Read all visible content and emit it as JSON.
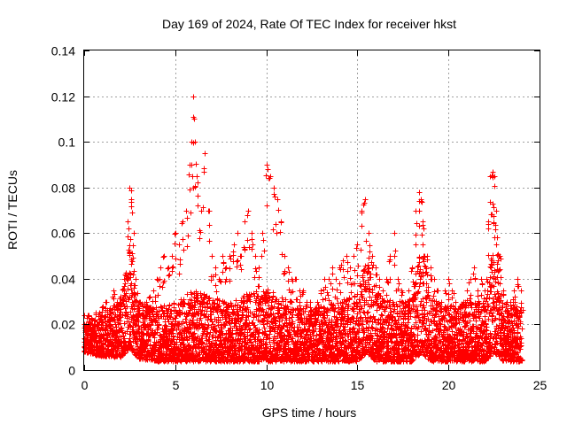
{
  "chart_data": {
    "type": "scatter",
    "title": "Day 169 of 2024, Rate Of TEC Index for receiver hkst",
    "xlabel": "GPS time / hours",
    "ylabel": "ROTI / TECUs",
    "xlim": [
      0,
      25
    ],
    "ylim": [
      0,
      0.14
    ],
    "xticks": [
      0,
      5,
      10,
      15,
      20,
      25
    ],
    "xtick_labels": [
      "0",
      "5",
      "10",
      "15",
      "20",
      "25"
    ],
    "yticks": [
      0,
      0.02,
      0.04,
      0.06,
      0.08,
      0.1,
      0.12,
      0.14
    ],
    "ytick_labels": [
      "0",
      "0.02",
      "0.04",
      "0.06",
      "0.08",
      "0.1",
      "0.12",
      "0.14"
    ],
    "grid": true,
    "marker": "+",
    "color": "#ff0000",
    "series": [
      {
        "name": "ROTI",
        "x": [
          0.0,
          0.2,
          0.4,
          0.6,
          0.8,
          1.0,
          1.2,
          1.4,
          1.6,
          1.8,
          2.0,
          2.2,
          2.4,
          2.5,
          2.6,
          2.7,
          2.8,
          3.0,
          3.2,
          3.4,
          3.6,
          3.8,
          4.0,
          4.2,
          4.4,
          4.6,
          4.8,
          5.0,
          5.2,
          5.4,
          5.6,
          5.8,
          5.9,
          6.0,
          6.1,
          6.2,
          6.4,
          6.6,
          6.8,
          7.0,
          7.2,
          7.4,
          7.6,
          7.8,
          8.0,
          8.2,
          8.4,
          8.6,
          8.8,
          9.0,
          9.2,
          9.4,
          9.6,
          9.8,
          10.0,
          10.2,
          10.4,
          10.6,
          10.8,
          11.0,
          11.2,
          11.4,
          11.6,
          11.8,
          12.0,
          12.2,
          12.4,
          12.6,
          12.8,
          13.0,
          13.2,
          13.4,
          13.6,
          13.8,
          14.0,
          14.2,
          14.4,
          14.6,
          14.8,
          15.0,
          15.2,
          15.4,
          15.6,
          15.8,
          16.0,
          16.2,
          16.4,
          16.6,
          16.8,
          17.0,
          17.2,
          17.4,
          17.6,
          17.8,
          18.0,
          18.2,
          18.4,
          18.5,
          18.6,
          18.8,
          19.0,
          19.2,
          19.4,
          19.6,
          19.8,
          20.0,
          20.2,
          20.4,
          20.6,
          20.8,
          21.0,
          21.2,
          21.4,
          21.6,
          21.8,
          22.0,
          22.2,
          22.3,
          22.4,
          22.5,
          22.6,
          22.8,
          23.0,
          23.2,
          23.4,
          23.6,
          23.8,
          24.0
        ],
        "y": [
          0.024,
          0.02,
          0.018,
          0.022,
          0.02,
          0.028,
          0.03,
          0.025,
          0.035,
          0.03,
          0.032,
          0.04,
          0.065,
          0.08,
          0.075,
          0.06,
          0.04,
          0.03,
          0.028,
          0.03,
          0.032,
          0.035,
          0.04,
          0.045,
          0.05,
          0.045,
          0.05,
          0.06,
          0.055,
          0.065,
          0.07,
          0.09,
          0.1,
          0.12,
          0.1,
          0.085,
          0.07,
          0.095,
          0.07,
          0.05,
          0.045,
          0.04,
          0.05,
          0.045,
          0.05,
          0.055,
          0.06,
          0.05,
          0.065,
          0.07,
          0.06,
          0.05,
          0.045,
          0.06,
          0.09,
          0.085,
          0.08,
          0.075,
          0.065,
          0.05,
          0.045,
          0.04,
          0.04,
          0.035,
          0.035,
          0.03,
          0.03,
          0.025,
          0.03,
          0.035,
          0.04,
          0.04,
          0.045,
          0.04,
          0.045,
          0.048,
          0.05,
          0.045,
          0.05,
          0.055,
          0.07,
          0.075,
          0.06,
          0.05,
          0.045,
          0.04,
          0.035,
          0.04,
          0.05,
          0.06,
          0.04,
          0.035,
          0.03,
          0.035,
          0.045,
          0.07,
          0.078,
          0.075,
          0.065,
          0.05,
          0.045,
          0.04,
          0.035,
          0.03,
          0.035,
          0.04,
          0.035,
          0.03,
          0.028,
          0.03,
          0.035,
          0.04,
          0.045,
          0.035,
          0.04,
          0.035,
          0.065,
          0.085,
          0.087,
          0.085,
          0.07,
          0.05,
          0.035,
          0.03,
          0.03,
          0.035,
          0.04,
          0.035
        ]
      }
    ],
    "activity_envelope": {
      "hours": [
        0,
        1,
        2,
        2.5,
        3,
        4,
        5,
        6,
        7,
        8,
        9,
        10,
        11,
        12,
        13,
        14,
        15,
        15.5,
        16,
        17,
        18,
        18.5,
        19,
        20,
        21,
        22,
        22.5,
        23,
        24
      ],
      "dense_max": [
        0.024,
        0.026,
        0.03,
        0.055,
        0.03,
        0.028,
        0.03,
        0.035,
        0.032,
        0.03,
        0.034,
        0.036,
        0.032,
        0.028,
        0.028,
        0.03,
        0.034,
        0.05,
        0.034,
        0.03,
        0.032,
        0.06,
        0.032,
        0.028,
        0.03,
        0.032,
        0.07,
        0.03,
        0.028
      ],
      "dense_min": [
        0.008,
        0.006,
        0.006,
        0.01,
        0.005,
        0.004,
        0.004,
        0.004,
        0.004,
        0.004,
        0.004,
        0.004,
        0.004,
        0.004,
        0.004,
        0.004,
        0.004,
        0.008,
        0.004,
        0.004,
        0.004,
        0.008,
        0.004,
        0.004,
        0.004,
        0.004,
        0.008,
        0.004,
        0.004
      ]
    }
  }
}
